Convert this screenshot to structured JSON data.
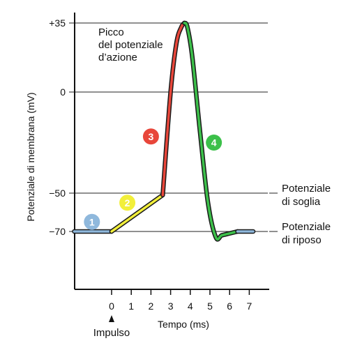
{
  "chart_data": {
    "type": "line",
    "xlabel": "Tempo (ms)",
    "ylabel": "Potenziale di membrana (mV)",
    "x_ticks": [
      0,
      1,
      2,
      3,
      4,
      5,
      6,
      7
    ],
    "y_ticks": [
      {
        "value": 35,
        "label": "+35"
      },
      {
        "value": 0,
        "label": "0"
      },
      {
        "value": -50,
        "label": "−50"
      },
      {
        "value": -70,
        "label": "−70"
      }
    ],
    "xlim": [
      -1.9,
      7.2
    ],
    "ylim": [
      -100,
      38
    ],
    "reference_lines": [
      {
        "value": 35,
        "label": ""
      },
      {
        "value": 0,
        "label": ""
      },
      {
        "value": -50,
        "label": "Potenziale\ndi soglia"
      },
      {
        "value": -70,
        "label": "Potenziale\ndi riposo"
      }
    ],
    "annotations": {
      "peak": "Picco\ndel potenziale\nd’azione",
      "stimulus": "Impulso"
    },
    "phases": [
      {
        "number": "1",
        "color": "#8fb8dc",
        "x": [
          -1.9,
          0
        ],
        "y": [
          -70,
          -70
        ],
        "label_at": [
          -1.0,
          -65
        ]
      },
      {
        "number": "2",
        "color": "#f2ef3a",
        "x": [
          0,
          2.6
        ],
        "y": [
          -70,
          -51
        ],
        "label_at": [
          0.8,
          -55
        ]
      },
      {
        "number": "3",
        "color": "#e8463a",
        "x": [
          2.6,
          3.0,
          3.3,
          3.55,
          3.7
        ],
        "y": [
          -51,
          0,
          25,
          33,
          35
        ],
        "label_at": [
          2.0,
          -22
        ]
      },
      {
        "number": "4",
        "color": "#3cc04a",
        "x": [
          3.7,
          3.85,
          4.1,
          4.5,
          4.9,
          5.3,
          5.6,
          6.0,
          6.4
        ],
        "y": [
          35,
          33,
          18,
          -20,
          -55,
          -73,
          -72,
          -71,
          -70
        ],
        "label_at": [
          5.2,
          -25
        ]
      },
      {
        "number": "",
        "color": "#8fb8dc",
        "x": [
          6.4,
          7.2
        ],
        "y": [
          -70,
          -70
        ],
        "label_at": null
      }
    ]
  }
}
